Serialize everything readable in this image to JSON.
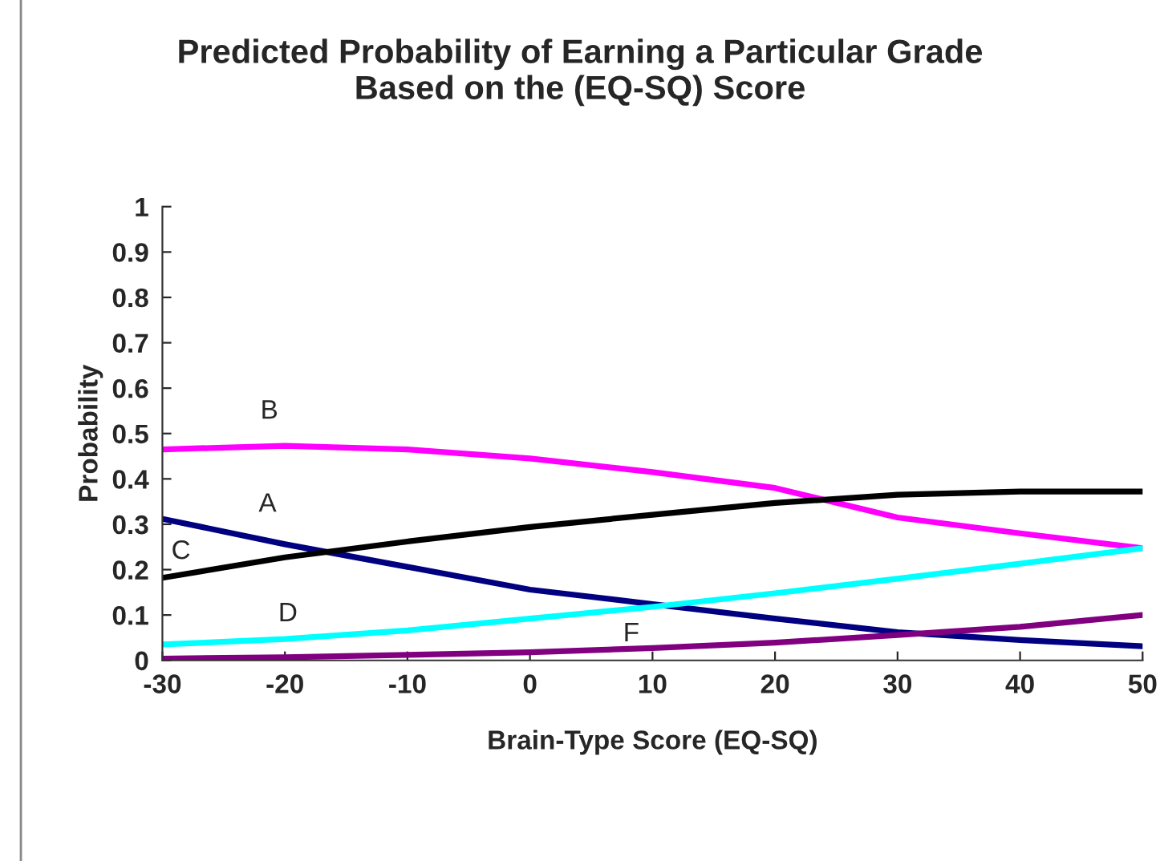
{
  "chart_data": {
    "type": "line",
    "title": "Predicted Probability of Earning a Particular Grade\nBased on the (EQ-SQ) Score",
    "xlabel": "Brain-Type Score (EQ-SQ)",
    "ylabel": "Probability",
    "x": [
      -30,
      -20,
      -10,
      0,
      10,
      20,
      30,
      40,
      50
    ],
    "series": [
      {
        "name": "B",
        "color": "#ff00ff",
        "values": [
          0.465,
          0.473,
          0.465,
          0.445,
          0.415,
          0.38,
          0.315,
          0.28,
          0.247
        ]
      },
      {
        "name": "A",
        "color": "#000080",
        "values": [
          0.312,
          0.256,
          0.206,
          0.156,
          0.124,
          0.092,
          0.062,
          0.045,
          0.031
        ]
      },
      {
        "name": "C",
        "color": "#000000",
        "values": [
          0.182,
          0.227,
          0.262,
          0.294,
          0.321,
          0.347,
          0.365,
          0.372,
          0.372
        ]
      },
      {
        "name": "D",
        "color": "#00ffff",
        "values": [
          0.035,
          0.047,
          0.066,
          0.092,
          0.118,
          0.148,
          0.18,
          0.213,
          0.247
        ]
      },
      {
        "name": "F",
        "color": "#800080",
        "values": [
          0.004,
          0.007,
          0.012,
          0.018,
          0.027,
          0.039,
          0.056,
          0.074,
          0.1
        ]
      }
    ],
    "xlim": [
      -30,
      50
    ],
    "xticks": [
      -30,
      -20,
      -10,
      0,
      10,
      20,
      30,
      40,
      50
    ],
    "ylim": [
      0,
      1
    ],
    "yticks": [
      0,
      0.1,
      0.2,
      0.3,
      0.4,
      0.5,
      0.6,
      0.7,
      0.8,
      0.9,
      1
    ],
    "grid": false,
    "legend": false,
    "marker": "none",
    "line_style": "solid"
  }
}
